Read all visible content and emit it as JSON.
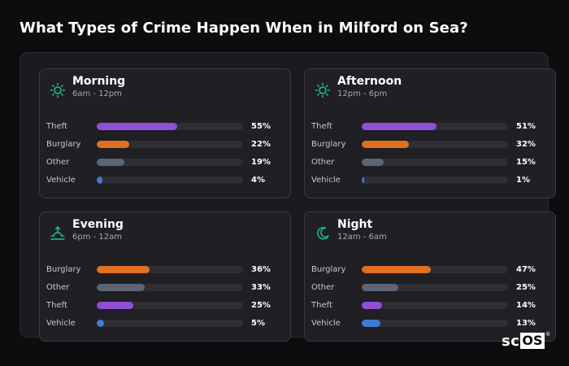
{
  "title": "What Types of Crime Happen When in Milford on Sea?",
  "logo": {
    "sc": "sc",
    "os": "OS",
    "reg": "®"
  },
  "colors": {
    "Theft": "#8f4fd6",
    "Burglary": "#e0701e",
    "Other": "#5d6473",
    "Vehicle": "#3f7ad6",
    "icon": "#1fbf8f"
  },
  "chart_data": [
    {
      "type": "bar",
      "title": "Morning",
      "subtitle": "6am - 12pm",
      "icon": "sun-icon",
      "categories": [
        "Theft",
        "Burglary",
        "Other",
        "Vehicle"
      ],
      "values": [
        55,
        22,
        19,
        4
      ],
      "labels": [
        "55%",
        "22%",
        "19%",
        "4%"
      ],
      "xlim": [
        0,
        100
      ]
    },
    {
      "type": "bar",
      "title": "Afternoon",
      "subtitle": "12pm - 6pm",
      "icon": "sun-icon",
      "categories": [
        "Theft",
        "Burglary",
        "Other",
        "Vehicle"
      ],
      "values": [
        51,
        32,
        15,
        1
      ],
      "labels": [
        "51%",
        "32%",
        "15%",
        "1%"
      ],
      "xlim": [
        0,
        100
      ]
    },
    {
      "type": "bar",
      "title": "Evening",
      "subtitle": "6pm - 12am",
      "icon": "sunset-icon",
      "categories": [
        "Burglary",
        "Other",
        "Theft",
        "Vehicle"
      ],
      "values": [
        36,
        33,
        25,
        5
      ],
      "labels": [
        "36%",
        "33%",
        "25%",
        "5%"
      ],
      "xlim": [
        0,
        100
      ]
    },
    {
      "type": "bar",
      "title": "Night",
      "subtitle": "12am - 6am",
      "icon": "moon-icon",
      "categories": [
        "Burglary",
        "Other",
        "Theft",
        "Vehicle"
      ],
      "values": [
        47,
        25,
        14,
        13
      ],
      "labels": [
        "47%",
        "25%",
        "14%",
        "13%"
      ],
      "xlim": [
        0,
        100
      ]
    }
  ]
}
